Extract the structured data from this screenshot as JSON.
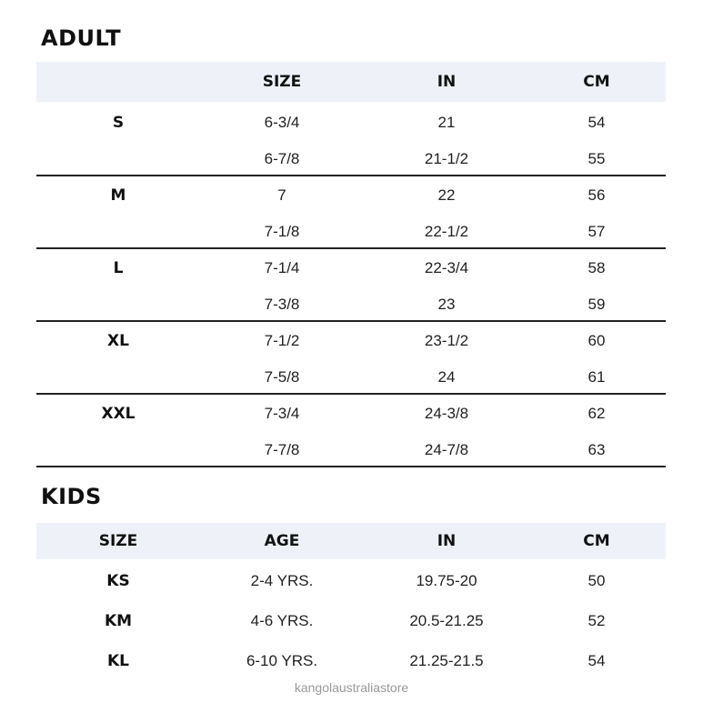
{
  "adult": {
    "title": "ADULT",
    "headers": [
      "",
      "SIZE",
      "IN",
      "CM"
    ],
    "groups": [
      {
        "label": "S",
        "rows": [
          [
            "6-3/4",
            "21",
            "54"
          ],
          [
            "6-7/8",
            "21-1/2",
            "55"
          ]
        ]
      },
      {
        "label": "M",
        "rows": [
          [
            "7",
            "22",
            "56"
          ],
          [
            "7-1/8",
            "22-1/2",
            "57"
          ]
        ]
      },
      {
        "label": "L",
        "rows": [
          [
            "7-1/4",
            "22-3/4",
            "58"
          ],
          [
            "7-3/8",
            "23",
            "59"
          ]
        ]
      },
      {
        "label": "XL",
        "rows": [
          [
            "7-1/2",
            "23-1/2",
            "60"
          ],
          [
            "7-5/8",
            "24",
            "61"
          ]
        ]
      },
      {
        "label": "XXL",
        "rows": [
          [
            "7-3/4",
            "24-3/8",
            "62"
          ],
          [
            "7-7/8",
            "24-7/8",
            "63"
          ]
        ]
      }
    ]
  },
  "kids": {
    "title": "KIDS",
    "headers": [
      "SIZE",
      "AGE",
      "IN",
      "CM"
    ],
    "rows": [
      [
        "KS",
        "2-4 YRS.",
        "19.75-20",
        "50"
      ],
      [
        "KM",
        "4-6 YRS.",
        "20.5-21.25",
        "52"
      ],
      [
        "KL",
        "6-10 YRS.",
        "21.25-21.5",
        "54"
      ]
    ]
  },
  "watermark": "kangolaustraliastore",
  "colors": {
    "header_bg": "#eef2f8",
    "rule": "#222222"
  }
}
